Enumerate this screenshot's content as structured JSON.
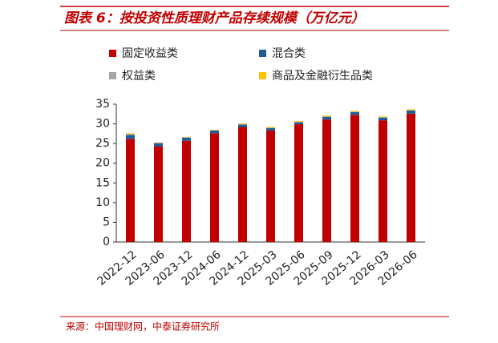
{
  "chart_data": {
    "type": "stacked-bar",
    "title": "图表 6：按投资性质理财产品存续规模（万亿元）",
    "source": "来源：中国理财网，中泰证券研究所",
    "categories": [
      "2022-12",
      "2023-06",
      "2023-12",
      "2024-06",
      "2024-12",
      "2025-03",
      "2025-06",
      "2025-09",
      "2025-12",
      "2026-03",
      "2026-06"
    ],
    "series": [
      {
        "name": "固定收益类",
        "color": "#c00000",
        "values": [
          26.2,
          24.3,
          25.7,
          27.6,
          29.2,
          28.3,
          29.9,
          31.1,
          32.3,
          30.9,
          32.6
        ]
      },
      {
        "name": "混合类",
        "color": "#1f5c99",
        "values": [
          1.0,
          0.8,
          0.8,
          0.7,
          0.6,
          0.6,
          0.5,
          0.7,
          0.7,
          0.7,
          0.8
        ]
      },
      {
        "name": "权益类",
        "color": "#a5a5a5",
        "values": [
          0.2,
          0.1,
          0.1,
          0.1,
          0.1,
          0.1,
          0.1,
          0.1,
          0.1,
          0.1,
          0.1
        ]
      },
      {
        "name": "商品及金融衍生品类",
        "color": "#ffc000",
        "values": [
          0.2,
          0.1,
          0.1,
          0.1,
          0.2,
          0.2,
          0.2,
          0.2,
          0.2,
          0.2,
          0.2
        ]
      }
    ],
    "ylim": [
      0,
      35
    ],
    "yticks": [
      0,
      5,
      10,
      15,
      20,
      25,
      30,
      35
    ],
    "grid": false
  }
}
